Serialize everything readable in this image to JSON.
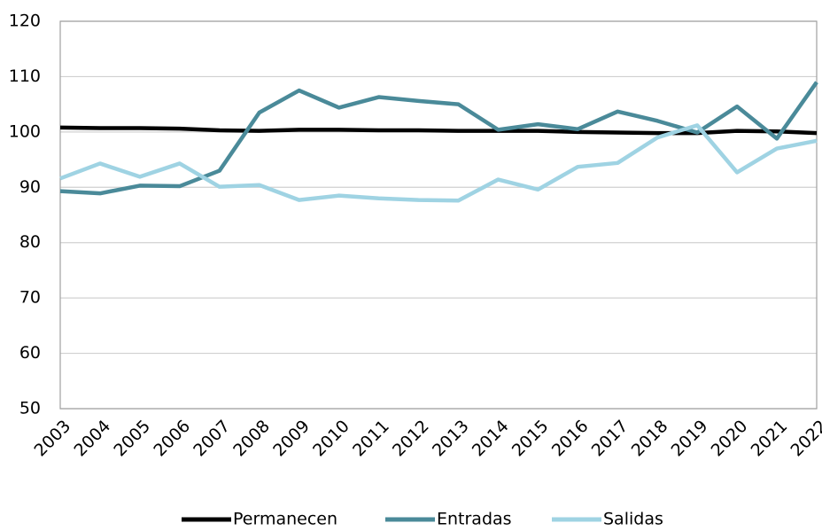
{
  "chart_data": {
    "type": "line",
    "x": [
      "2003",
      "2004",
      "2005",
      "2006",
      "2007",
      "2008",
      "2009",
      "2010",
      "2011",
      "2012",
      "2013",
      "2014",
      "2015",
      "2016",
      "2017",
      "2018",
      "2019",
      "2020",
      "2021",
      "2022"
    ],
    "series": [
      {
        "name": "Permanecen",
        "color": "#000000",
        "values": [
          100.8,
          100.7,
          100.7,
          100.6,
          100.3,
          100.2,
          100.4,
          100.4,
          100.3,
          100.3,
          100.2,
          100.2,
          100.2,
          100.0,
          99.9,
          99.8,
          99.8,
          100.2,
          100.1,
          99.8
        ]
      },
      {
        "name": "Entradas",
        "color": "#4a8a99",
        "values": [
          89.3,
          88.9,
          90.3,
          90.2,
          93.0,
          103.5,
          107.5,
          104.4,
          106.3,
          105.6,
          105.0,
          100.4,
          101.4,
          100.5,
          103.7,
          102.0,
          99.9,
          104.6,
          98.8,
          109.0
        ]
      },
      {
        "name": "Salidas",
        "color": "#9fd3e3",
        "values": [
          91.6,
          94.3,
          91.9,
          94.3,
          90.1,
          90.4,
          87.7,
          88.5,
          88.0,
          87.7,
          87.6,
          91.4,
          89.6,
          93.7,
          94.4,
          99.0,
          101.2,
          92.7,
          97.0,
          98.4
        ]
      }
    ],
    "ylim": [
      50,
      120
    ],
    "yticks": [
      50,
      60,
      70,
      80,
      90,
      100,
      110,
      120
    ],
    "grid": true,
    "legend": "bottom"
  }
}
